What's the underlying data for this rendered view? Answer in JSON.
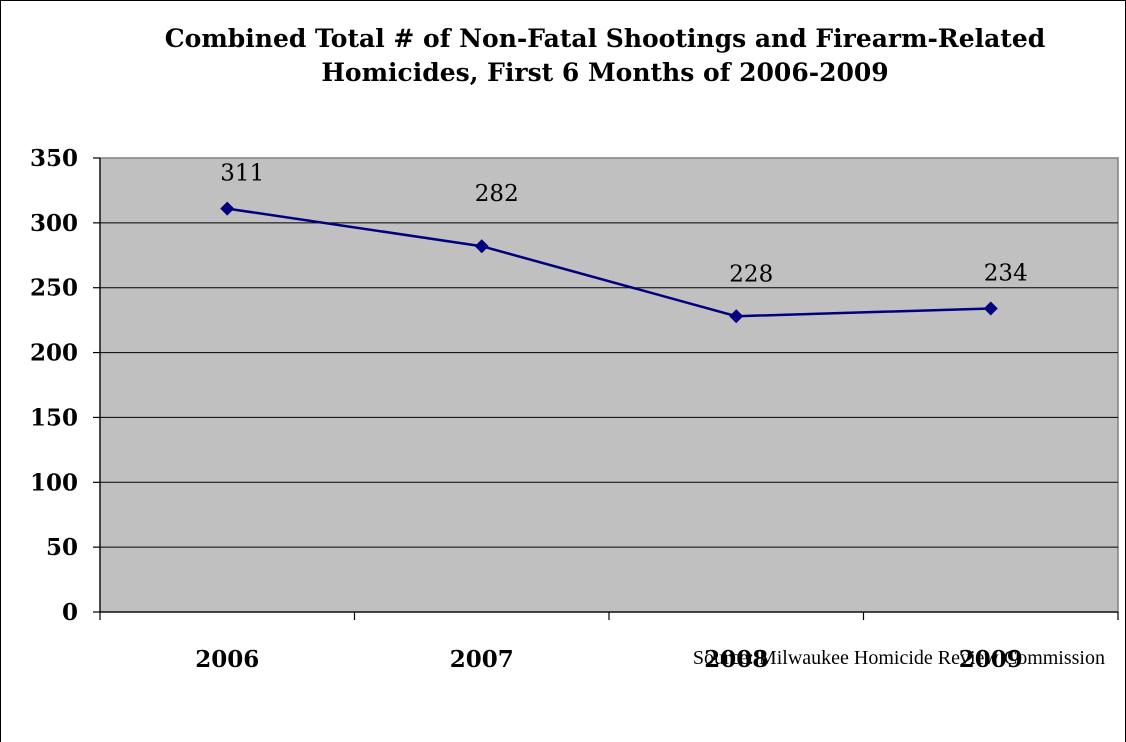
{
  "chart_data": {
    "type": "line",
    "title_lines": [
      "Combined Total # of Non-Fatal Shootings and Firearm-Related",
      "Homicides, First 6 Months of 2006-2009"
    ],
    "categories": [
      "2006",
      "2007",
      "2008",
      "2009"
    ],
    "series": [
      {
        "values": [
          311,
          282,
          228,
          234
        ],
        "color": "#00007f"
      }
    ],
    "data_labels": [
      "311",
      "282",
      "228",
      "234"
    ],
    "ylim": [
      0,
      350
    ],
    "yticks": [
      0,
      50,
      100,
      150,
      200,
      250,
      300,
      350
    ],
    "grid": true,
    "plot_background": "#c0c0c0",
    "legend": "none"
  },
  "source_text": "Source: Milwaukee Homicide Review Commission"
}
